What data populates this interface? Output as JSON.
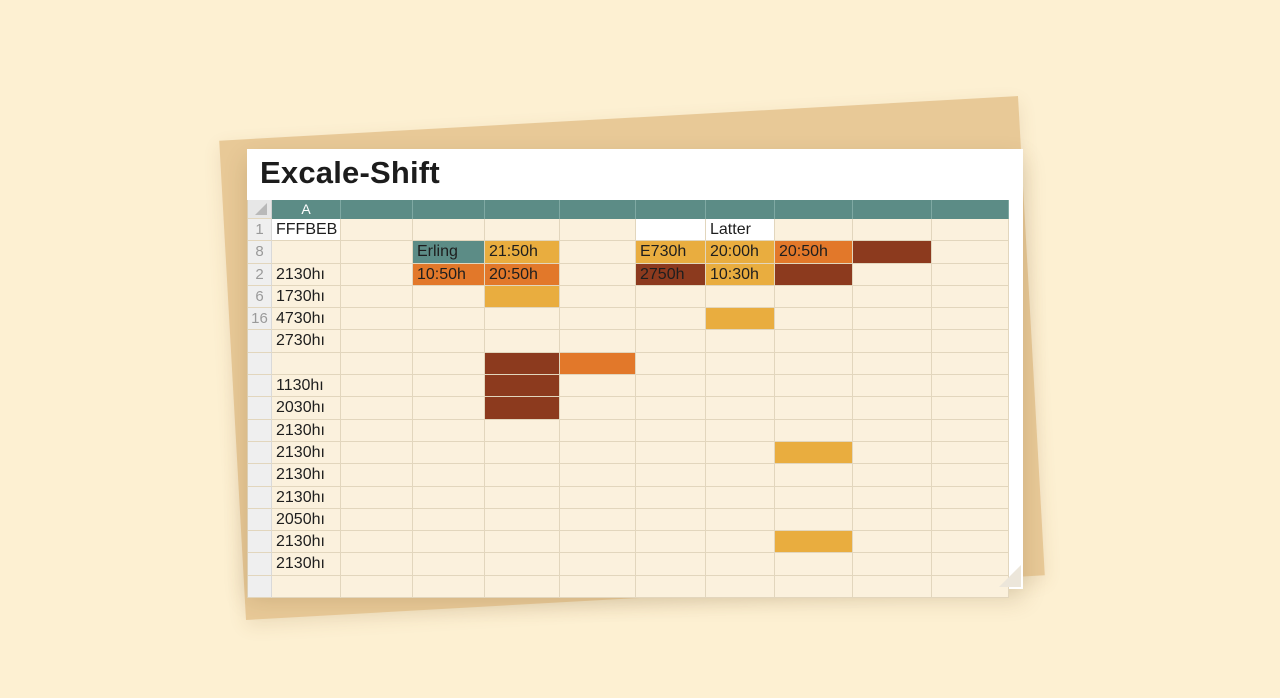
{
  "title": "Excale-Shift",
  "column_headers": [
    "A",
    "",
    "",
    "",
    "",
    "",
    "",
    "",
    "",
    ""
  ],
  "colors": {
    "background": "#fdf0d2",
    "header_teal": "#5c8c86",
    "cell": "#fbf1dd",
    "teal": "#5c8c86",
    "amber": "#e9ad3f",
    "orange": "#e2782a",
    "rust": "#8c3a1e",
    "white": "#ffffff"
  },
  "rows": [
    {
      "num": "1",
      "cells": [
        {
          "t": "FFFBEB",
          "c": "white"
        },
        {
          "t": "",
          "c": ""
        },
        {
          "t": "",
          "c": ""
        },
        {
          "t": "",
          "c": ""
        },
        {
          "t": "",
          "c": ""
        },
        {
          "t": "",
          "c": "white"
        },
        {
          "t": "Latter",
          "c": "white"
        },
        {
          "t": "",
          "c": ""
        },
        {
          "t": "",
          "c": ""
        },
        {
          "t": "",
          "c": ""
        }
      ]
    },
    {
      "num": "8",
      "cells": [
        {
          "t": "",
          "c": ""
        },
        {
          "t": "",
          "c": ""
        },
        {
          "t": "Erling",
          "c": "teal"
        },
        {
          "t": "21:50h",
          "c": "amber"
        },
        {
          "t": "",
          "c": ""
        },
        {
          "t": "E730h",
          "c": "amber"
        },
        {
          "t": "20:00h",
          "c": "amber"
        },
        {
          "t": "20:50h",
          "c": "orange"
        },
        {
          "t": "",
          "c": "rust"
        },
        {
          "t": "",
          "c": ""
        }
      ]
    },
    {
      "num": "2",
      "cells": [
        {
          "t": "2130hı",
          "c": ""
        },
        {
          "t": "",
          "c": ""
        },
        {
          "t": "10:50h",
          "c": "orange"
        },
        {
          "t": "20:50h",
          "c": "orange"
        },
        {
          "t": "",
          "c": ""
        },
        {
          "t": "2750h",
          "c": "rust"
        },
        {
          "t": "10:30h",
          "c": "amber"
        },
        {
          "t": "",
          "c": "rust"
        },
        {
          "t": "",
          "c": ""
        },
        {
          "t": "",
          "c": ""
        }
      ]
    },
    {
      "num": "6",
      "cells": [
        {
          "t": "1730hı",
          "c": ""
        },
        {
          "t": "",
          "c": ""
        },
        {
          "t": "",
          "c": ""
        },
        {
          "t": "",
          "c": "amber"
        },
        {
          "t": "",
          "c": ""
        },
        {
          "t": "",
          "c": ""
        },
        {
          "t": "",
          "c": ""
        },
        {
          "t": "",
          "c": ""
        },
        {
          "t": "",
          "c": ""
        },
        {
          "t": "",
          "c": ""
        }
      ]
    },
    {
      "num": "16",
      "cells": [
        {
          "t": "4730hı",
          "c": ""
        },
        {
          "t": "",
          "c": ""
        },
        {
          "t": "",
          "c": ""
        },
        {
          "t": "",
          "c": ""
        },
        {
          "t": "",
          "c": ""
        },
        {
          "t": "",
          "c": ""
        },
        {
          "t": "",
          "c": "amber"
        },
        {
          "t": "",
          "c": ""
        },
        {
          "t": "",
          "c": ""
        },
        {
          "t": "",
          "c": ""
        }
      ]
    },
    {
      "num": "",
      "cells": [
        {
          "t": "2730hı",
          "c": ""
        },
        {
          "t": "",
          "c": ""
        },
        {
          "t": "",
          "c": ""
        },
        {
          "t": "",
          "c": ""
        },
        {
          "t": "",
          "c": ""
        },
        {
          "t": "",
          "c": ""
        },
        {
          "t": "",
          "c": ""
        },
        {
          "t": "",
          "c": ""
        },
        {
          "t": "",
          "c": ""
        },
        {
          "t": "",
          "c": ""
        }
      ]
    },
    {
      "num": "",
      "cells": [
        {
          "t": "",
          "c": ""
        },
        {
          "t": "",
          "c": ""
        },
        {
          "t": "",
          "c": ""
        },
        {
          "t": "",
          "c": "rust"
        },
        {
          "t": "",
          "c": "orange"
        },
        {
          "t": "",
          "c": ""
        },
        {
          "t": "",
          "c": ""
        },
        {
          "t": "",
          "c": ""
        },
        {
          "t": "",
          "c": ""
        },
        {
          "t": "",
          "c": ""
        }
      ]
    },
    {
      "num": "",
      "cells": [
        {
          "t": "1130hı",
          "c": ""
        },
        {
          "t": "",
          "c": ""
        },
        {
          "t": "",
          "c": ""
        },
        {
          "t": "",
          "c": "rust"
        },
        {
          "t": "",
          "c": ""
        },
        {
          "t": "",
          "c": ""
        },
        {
          "t": "",
          "c": ""
        },
        {
          "t": "",
          "c": ""
        },
        {
          "t": "",
          "c": ""
        },
        {
          "t": "",
          "c": ""
        }
      ]
    },
    {
      "num": "",
      "cells": [
        {
          "t": "2030hı",
          "c": ""
        },
        {
          "t": "",
          "c": ""
        },
        {
          "t": "",
          "c": ""
        },
        {
          "t": "",
          "c": "rust"
        },
        {
          "t": "",
          "c": ""
        },
        {
          "t": "",
          "c": ""
        },
        {
          "t": "",
          "c": ""
        },
        {
          "t": "",
          "c": ""
        },
        {
          "t": "",
          "c": ""
        },
        {
          "t": "",
          "c": ""
        }
      ]
    },
    {
      "num": "",
      "cells": [
        {
          "t": "2130hı",
          "c": ""
        },
        {
          "t": "",
          "c": ""
        },
        {
          "t": "",
          "c": ""
        },
        {
          "t": "",
          "c": ""
        },
        {
          "t": "",
          "c": ""
        },
        {
          "t": "",
          "c": ""
        },
        {
          "t": "",
          "c": ""
        },
        {
          "t": "",
          "c": ""
        },
        {
          "t": "",
          "c": ""
        },
        {
          "t": "",
          "c": ""
        }
      ]
    },
    {
      "num": "",
      "cells": [
        {
          "t": "2130hı",
          "c": ""
        },
        {
          "t": "",
          "c": ""
        },
        {
          "t": "",
          "c": ""
        },
        {
          "t": "",
          "c": ""
        },
        {
          "t": "",
          "c": ""
        },
        {
          "t": "",
          "c": ""
        },
        {
          "t": "",
          "c": ""
        },
        {
          "t": "",
          "c": "amber"
        },
        {
          "t": "",
          "c": ""
        },
        {
          "t": "",
          "c": ""
        }
      ]
    },
    {
      "num": "",
      "cells": [
        {
          "t": "2130hı",
          "c": ""
        },
        {
          "t": "",
          "c": ""
        },
        {
          "t": "",
          "c": ""
        },
        {
          "t": "",
          "c": ""
        },
        {
          "t": "",
          "c": ""
        },
        {
          "t": "",
          "c": ""
        },
        {
          "t": "",
          "c": ""
        },
        {
          "t": "",
          "c": ""
        },
        {
          "t": "",
          "c": ""
        },
        {
          "t": "",
          "c": ""
        }
      ]
    },
    {
      "num": "",
      "cells": [
        {
          "t": "2130hı",
          "c": ""
        },
        {
          "t": "",
          "c": ""
        },
        {
          "t": "",
          "c": ""
        },
        {
          "t": "",
          "c": ""
        },
        {
          "t": "",
          "c": ""
        },
        {
          "t": "",
          "c": ""
        },
        {
          "t": "",
          "c": ""
        },
        {
          "t": "",
          "c": ""
        },
        {
          "t": "",
          "c": ""
        },
        {
          "t": "",
          "c": ""
        }
      ]
    },
    {
      "num": "",
      "cells": [
        {
          "t": "2050hı",
          "c": ""
        },
        {
          "t": "",
          "c": ""
        },
        {
          "t": "",
          "c": ""
        },
        {
          "t": "",
          "c": ""
        },
        {
          "t": "",
          "c": ""
        },
        {
          "t": "",
          "c": ""
        },
        {
          "t": "",
          "c": ""
        },
        {
          "t": "",
          "c": ""
        },
        {
          "t": "",
          "c": ""
        },
        {
          "t": "",
          "c": ""
        }
      ]
    },
    {
      "num": "",
      "cells": [
        {
          "t": "2130hı",
          "c": ""
        },
        {
          "t": "",
          "c": ""
        },
        {
          "t": "",
          "c": ""
        },
        {
          "t": "",
          "c": ""
        },
        {
          "t": "",
          "c": ""
        },
        {
          "t": "",
          "c": ""
        },
        {
          "t": "",
          "c": ""
        },
        {
          "t": "",
          "c": "amber"
        },
        {
          "t": "",
          "c": ""
        },
        {
          "t": "",
          "c": ""
        }
      ]
    },
    {
      "num": "",
      "cells": [
        {
          "t": "2130hı",
          "c": ""
        },
        {
          "t": "",
          "c": ""
        },
        {
          "t": "",
          "c": ""
        },
        {
          "t": "",
          "c": ""
        },
        {
          "t": "",
          "c": ""
        },
        {
          "t": "",
          "c": ""
        },
        {
          "t": "",
          "c": ""
        },
        {
          "t": "",
          "c": ""
        },
        {
          "t": "",
          "c": ""
        },
        {
          "t": "",
          "c": ""
        }
      ]
    },
    {
      "num": "",
      "cells": [
        {
          "t": "",
          "c": ""
        },
        {
          "t": "",
          "c": ""
        },
        {
          "t": "",
          "c": ""
        },
        {
          "t": "",
          "c": ""
        },
        {
          "t": "",
          "c": ""
        },
        {
          "t": "",
          "c": ""
        },
        {
          "t": "",
          "c": ""
        },
        {
          "t": "",
          "c": ""
        },
        {
          "t": "",
          "c": ""
        },
        {
          "t": "",
          "c": ""
        }
      ]
    }
  ]
}
